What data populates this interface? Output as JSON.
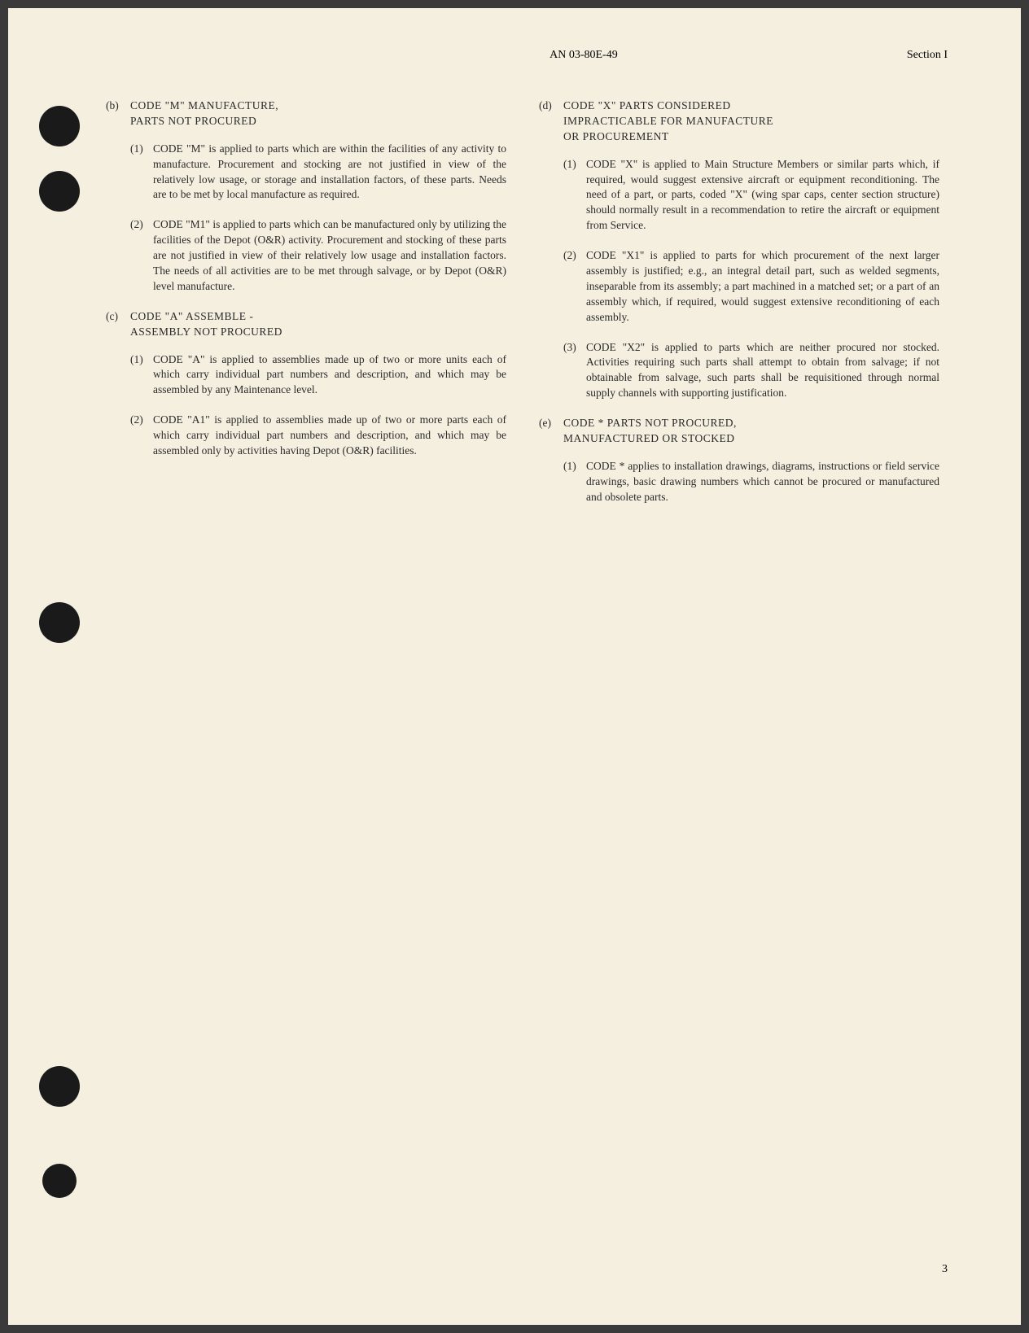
{
  "header": {
    "doc_number": "AN 03-80E-49",
    "section": "Section I"
  },
  "left_column": {
    "section_b": {
      "letter": "(b)",
      "title_line1": "CODE \"M\" MANUFACTURE,",
      "title_line2": "PARTS NOT PROCURED",
      "item1_num": "(1)",
      "item1_text": "CODE \"M\" is applied to parts which are within the facilities of any activity to manufacture. Procurement and stocking are not justified in view of the relatively low usage, or storage and installation factors, of these parts. Needs are to be met by local manufacture as required.",
      "item2_num": "(2)",
      "item2_text": "CODE \"M1\" is applied to parts which can be manufactured only by utilizing the facilities of the Depot (O&R) activity. Procurement and stocking of these parts are not justified in view of their relatively low usage and installation factors. The needs of all activities are to be met through salvage, or by Depot (O&R) level manufacture."
    },
    "section_c": {
      "letter": "(c)",
      "title_line1": "CODE \"A\" ASSEMBLE -",
      "title_line2": "ASSEMBLY NOT PROCURED",
      "item1_num": "(1)",
      "item1_text": "CODE \"A\" is applied to assemblies made up of two or more units each of which carry individual part numbers and description, and which may be assembled by any Maintenance level.",
      "item2_num": "(2)",
      "item2_text": "CODE \"A1\" is applied to assemblies made up of two or more parts each of which carry individual part numbers and description, and which may be assembled only by activities having Depot (O&R) facilities."
    }
  },
  "right_column": {
    "section_d": {
      "letter": "(d)",
      "title_line1": "CODE \"X\" PARTS CONSIDERED",
      "title_line2": "IMPRACTICABLE FOR MANUFACTURE",
      "title_line3": "OR PROCUREMENT",
      "item1_num": "(1)",
      "item1_text": "CODE \"X\" is applied to Main Structure Members or similar parts which, if required, would suggest extensive aircraft or equipment reconditioning. The need of a part, or parts, coded \"X\" (wing spar caps, center section structure) should normally result in a recommendation to retire the aircraft or equipment from Service.",
      "item2_num": "(2)",
      "item2_text": "CODE \"X1\" is applied to parts for which procurement of the next larger assembly is justified; e.g., an integral detail part, such as welded segments, inseparable from its assembly; a part machined in a matched set; or a part of an assembly which, if required, would suggest extensive reconditioning of each assembly.",
      "item3_num": "(3)",
      "item3_text": "CODE \"X2\" is applied to parts which are neither procured nor stocked. Activities requiring such parts shall attempt to obtain from salvage; if not obtainable from salvage, such parts shall be requisitioned through normal supply channels with supporting justification."
    },
    "section_e": {
      "letter": "(e)",
      "title_line1": "CODE * PARTS NOT PROCURED,",
      "title_line2": "MANUFACTURED OR STOCKED",
      "item1_num": "(1)",
      "item1_text": "CODE * applies to installation drawings, diagrams, instructions or field service drawings, basic drawing numbers which cannot be procured or manufactured and obsolete parts."
    }
  },
  "page_number": "3",
  "colors": {
    "page_bg": "#f5efe0",
    "text": "#2a2a2a",
    "hole": "#1a1a1a"
  }
}
